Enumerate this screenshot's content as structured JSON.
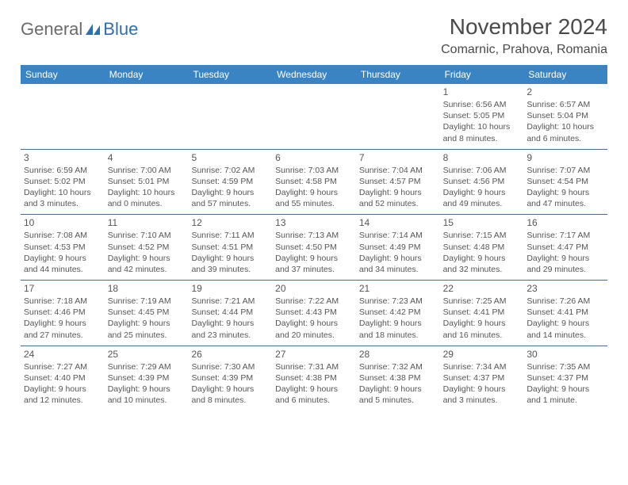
{
  "brand": {
    "general": "General",
    "blue": "Blue"
  },
  "title": "November 2024",
  "location": "Comarnic, Prahova, Romania",
  "header_bg": "#3b84c4",
  "header_fg": "#ffffff",
  "rule_color": "#4a6a8a",
  "text_color": "#555555",
  "day_headers": [
    "Sunday",
    "Monday",
    "Tuesday",
    "Wednesday",
    "Thursday",
    "Friday",
    "Saturday"
  ],
  "weeks": [
    [
      null,
      null,
      null,
      null,
      null,
      {
        "n": "1",
        "sr": "6:56 AM",
        "ss": "5:05 PM",
        "dl": "10 hours and 8 minutes."
      },
      {
        "n": "2",
        "sr": "6:57 AM",
        "ss": "5:04 PM",
        "dl": "10 hours and 6 minutes."
      }
    ],
    [
      {
        "n": "3",
        "sr": "6:59 AM",
        "ss": "5:02 PM",
        "dl": "10 hours and 3 minutes."
      },
      {
        "n": "4",
        "sr": "7:00 AM",
        "ss": "5:01 PM",
        "dl": "10 hours and 0 minutes."
      },
      {
        "n": "5",
        "sr": "7:02 AM",
        "ss": "4:59 PM",
        "dl": "9 hours and 57 minutes."
      },
      {
        "n": "6",
        "sr": "7:03 AM",
        "ss": "4:58 PM",
        "dl": "9 hours and 55 minutes."
      },
      {
        "n": "7",
        "sr": "7:04 AM",
        "ss": "4:57 PM",
        "dl": "9 hours and 52 minutes."
      },
      {
        "n": "8",
        "sr": "7:06 AM",
        "ss": "4:56 PM",
        "dl": "9 hours and 49 minutes."
      },
      {
        "n": "9",
        "sr": "7:07 AM",
        "ss": "4:54 PM",
        "dl": "9 hours and 47 minutes."
      }
    ],
    [
      {
        "n": "10",
        "sr": "7:08 AM",
        "ss": "4:53 PM",
        "dl": "9 hours and 44 minutes."
      },
      {
        "n": "11",
        "sr": "7:10 AM",
        "ss": "4:52 PM",
        "dl": "9 hours and 42 minutes."
      },
      {
        "n": "12",
        "sr": "7:11 AM",
        "ss": "4:51 PM",
        "dl": "9 hours and 39 minutes."
      },
      {
        "n": "13",
        "sr": "7:13 AM",
        "ss": "4:50 PM",
        "dl": "9 hours and 37 minutes."
      },
      {
        "n": "14",
        "sr": "7:14 AM",
        "ss": "4:49 PM",
        "dl": "9 hours and 34 minutes."
      },
      {
        "n": "15",
        "sr": "7:15 AM",
        "ss": "4:48 PM",
        "dl": "9 hours and 32 minutes."
      },
      {
        "n": "16",
        "sr": "7:17 AM",
        "ss": "4:47 PM",
        "dl": "9 hours and 29 minutes."
      }
    ],
    [
      {
        "n": "17",
        "sr": "7:18 AM",
        "ss": "4:46 PM",
        "dl": "9 hours and 27 minutes."
      },
      {
        "n": "18",
        "sr": "7:19 AM",
        "ss": "4:45 PM",
        "dl": "9 hours and 25 minutes."
      },
      {
        "n": "19",
        "sr": "7:21 AM",
        "ss": "4:44 PM",
        "dl": "9 hours and 23 minutes."
      },
      {
        "n": "20",
        "sr": "7:22 AM",
        "ss": "4:43 PM",
        "dl": "9 hours and 20 minutes."
      },
      {
        "n": "21",
        "sr": "7:23 AM",
        "ss": "4:42 PM",
        "dl": "9 hours and 18 minutes."
      },
      {
        "n": "22",
        "sr": "7:25 AM",
        "ss": "4:41 PM",
        "dl": "9 hours and 16 minutes."
      },
      {
        "n": "23",
        "sr": "7:26 AM",
        "ss": "4:41 PM",
        "dl": "9 hours and 14 minutes."
      }
    ],
    [
      {
        "n": "24",
        "sr": "7:27 AM",
        "ss": "4:40 PM",
        "dl": "9 hours and 12 minutes."
      },
      {
        "n": "25",
        "sr": "7:29 AM",
        "ss": "4:39 PM",
        "dl": "9 hours and 10 minutes."
      },
      {
        "n": "26",
        "sr": "7:30 AM",
        "ss": "4:39 PM",
        "dl": "9 hours and 8 minutes."
      },
      {
        "n": "27",
        "sr": "7:31 AM",
        "ss": "4:38 PM",
        "dl": "9 hours and 6 minutes."
      },
      {
        "n": "28",
        "sr": "7:32 AM",
        "ss": "4:38 PM",
        "dl": "9 hours and 5 minutes."
      },
      {
        "n": "29",
        "sr": "7:34 AM",
        "ss": "4:37 PM",
        "dl": "9 hours and 3 minutes."
      },
      {
        "n": "30",
        "sr": "7:35 AM",
        "ss": "4:37 PM",
        "dl": "9 hours and 1 minute."
      }
    ]
  ],
  "labels": {
    "sunrise": "Sunrise:",
    "sunset": "Sunset:",
    "daylight": "Daylight:"
  }
}
